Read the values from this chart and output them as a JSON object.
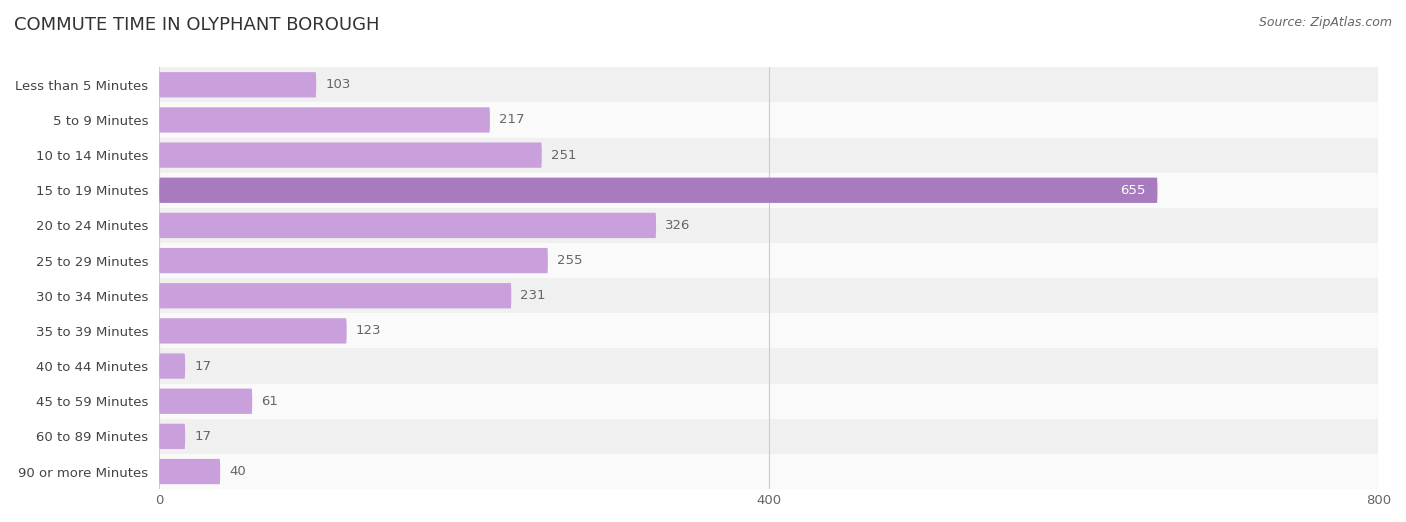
{
  "title": "COMMUTE TIME IN OLYPHANT BOROUGH",
  "source": "Source: ZipAtlas.com",
  "categories": [
    "Less than 5 Minutes",
    "5 to 9 Minutes",
    "10 to 14 Minutes",
    "15 to 19 Minutes",
    "20 to 24 Minutes",
    "25 to 29 Minutes",
    "30 to 34 Minutes",
    "35 to 39 Minutes",
    "40 to 44 Minutes",
    "45 to 59 Minutes",
    "60 to 89 Minutes",
    "90 or more Minutes"
  ],
  "values": [
    103,
    217,
    251,
    655,
    326,
    255,
    231,
    123,
    17,
    61,
    17,
    40
  ],
  "bar_color_normal": "#c9a0dc",
  "bar_color_highlight": "#a87bbf",
  "highlight_index": 3,
  "label_color_normal": "#666666",
  "label_color_highlight": "#ffffff",
  "value_color_normal": "#666666",
  "bg_color": "#ffffff",
  "row_even_color": "#f0f0f0",
  "row_odd_color": "#fafafa",
  "xlim_max": 800,
  "xticks": [
    0,
    400,
    800
  ],
  "title_fontsize": 13,
  "label_fontsize": 9.5,
  "value_fontsize": 9.5,
  "source_fontsize": 9
}
